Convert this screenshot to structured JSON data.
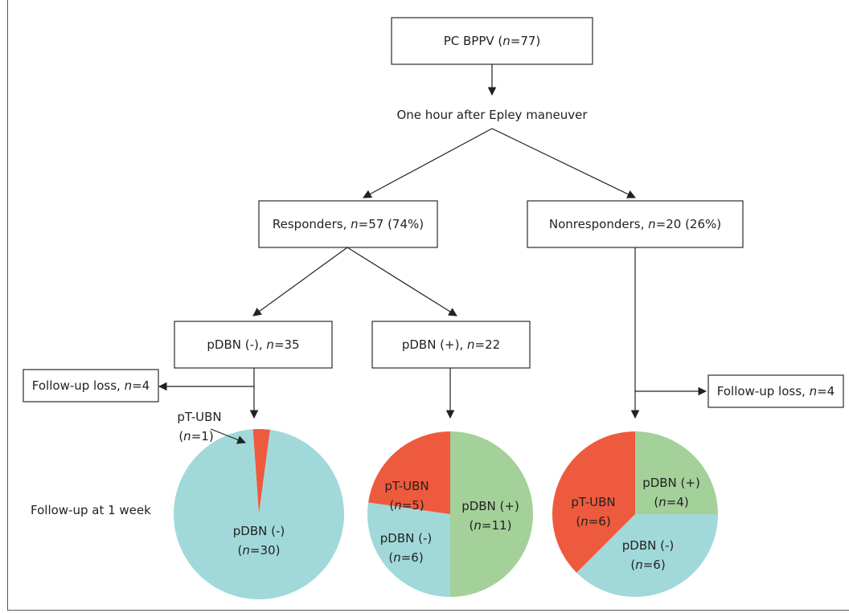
{
  "nodes": {
    "root": {
      "text": "PC BPPV (",
      "n": "n",
      "tail": "=77)"
    },
    "milestone": {
      "text": "One hour after Epley maneuver"
    },
    "responders": {
      "text": "Responders, ",
      "n": "n",
      "tail": "=57 (74%)"
    },
    "nonresponders": {
      "text": "Nonresponders, ",
      "n": "n",
      "tail": "=20 (26%)"
    },
    "pdbn_neg": {
      "text": "pDBN (-), ",
      "n": "n",
      "tail": "=35"
    },
    "pdbn_pos": {
      "text": "pDBN (+), ",
      "n": "n",
      "tail": "=22"
    },
    "loss_left": {
      "text": "Follow-up loss, ",
      "n": "n",
      "tail": "=4"
    },
    "loss_right": {
      "text": "Follow-up loss, ",
      "n": "n",
      "tail": "=4"
    }
  },
  "followup_label": "Follow-up at 1 week",
  "colors": {
    "pT-UBN": "#ee5a3e",
    "pDBN (-)": "#a1d9da",
    "pDBN (+)": "#a4d09a"
  },
  "pies": [
    {
      "id": "pie-pdbn-neg",
      "slices": [
        {
          "label": "pT-UBN",
          "n": "n",
          "count_text": "=1",
          "value": 1,
          "color": "#ee5a3e"
        },
        {
          "label": "pDBN (-)",
          "n": "n",
          "count_text": "=30",
          "value": 30,
          "color": "#a1d9da"
        }
      ]
    },
    {
      "id": "pie-pdbn-pos",
      "slices": [
        {
          "label": "pDBN (+)",
          "n": "n",
          "count_text": "=11",
          "value": 11,
          "color": "#a4d09a"
        },
        {
          "label": "pDBN (-)",
          "n": "n",
          "count_text": "=6",
          "value": 6,
          "color": "#a1d9da"
        },
        {
          "label": "pT-UBN",
          "n": "n",
          "count_text": "=5",
          "value": 5,
          "color": "#ee5a3e"
        }
      ]
    },
    {
      "id": "pie-nonresponders",
      "slices": [
        {
          "label": "pDBN (+)",
          "n": "n",
          "count_text": "=4",
          "value": 4,
          "color": "#a4d09a"
        },
        {
          "label": "pDBN (-)",
          "n": "n",
          "count_text": "=6",
          "value": 6,
          "color": "#a1d9da"
        },
        {
          "label": "pT-UBN",
          "n": "n",
          "count_text": "=6",
          "value": 6,
          "color": "#ee5a3e"
        }
      ]
    }
  ]
}
